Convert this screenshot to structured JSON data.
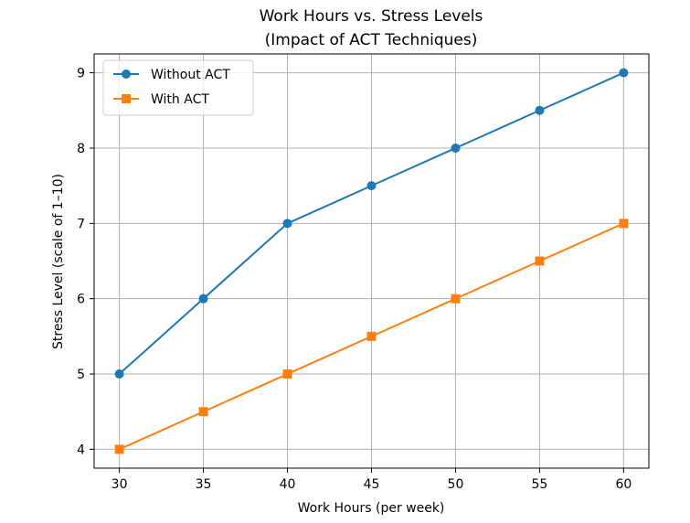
{
  "chart_data": {
    "type": "line",
    "title_line1": "Work Hours vs. Stress Levels",
    "title_line2": "(Impact of ACT Techniques)",
    "xlabel": "Work Hours (per week)",
    "ylabel": "Stress Level (scale of 1–10)",
    "x": [
      30,
      35,
      40,
      45,
      50,
      55,
      60
    ],
    "xticks": [
      "30",
      "35",
      "40",
      "45",
      "50",
      "55",
      "60"
    ],
    "yticks": [
      "4",
      "5",
      "6",
      "7",
      "8",
      "9"
    ],
    "xlim": [
      28.5,
      61.5
    ],
    "ylim": [
      3.75,
      9.25
    ],
    "grid": true,
    "legend_position": "upper-left",
    "series": [
      {
        "name": "Without ACT",
        "values": [
          5,
          6,
          7,
          7.5,
          8,
          8.5,
          9
        ],
        "color": "#1f77b4",
        "marker": "circle"
      },
      {
        "name": "With ACT",
        "values": [
          4,
          4.5,
          5,
          5.5,
          6,
          6.5,
          7
        ],
        "color": "#ff7f0e",
        "marker": "square"
      }
    ]
  }
}
